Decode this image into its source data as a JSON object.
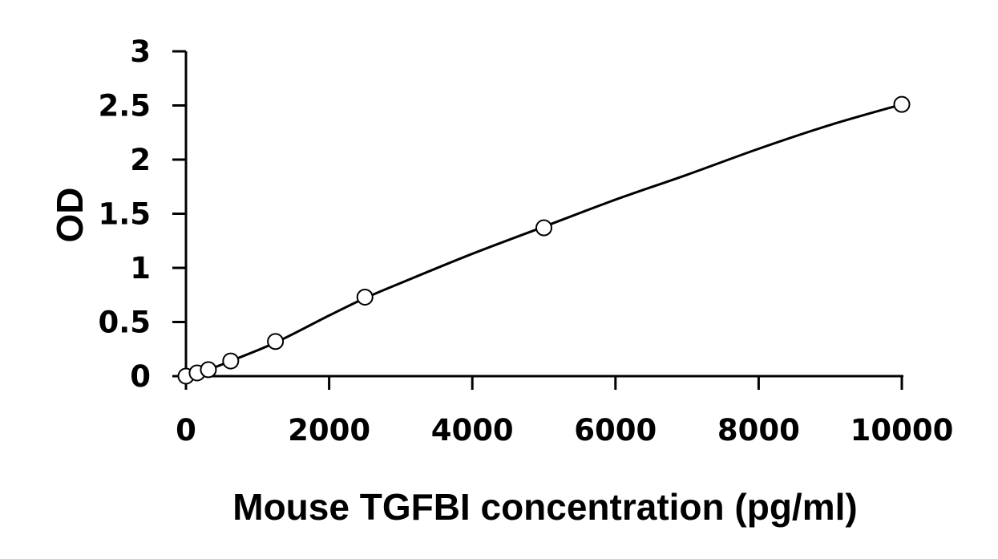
{
  "chart_data": {
    "type": "scatter",
    "title": "",
    "xlabel": "Mouse TGFBI concentration (pg/ml)",
    "ylabel": "OD",
    "xlim": [
      0,
      10000
    ],
    "ylim": [
      0,
      3
    ],
    "x_ticks": [
      0,
      2000,
      4000,
      6000,
      8000,
      10000
    ],
    "x_tick_labels": [
      "0",
      "2000",
      "4000",
      "6000",
      "8000",
      "10000"
    ],
    "y_ticks": [
      0,
      0.5,
      1,
      1.5,
      2,
      2.5,
      3
    ],
    "y_tick_labels": [
      "0",
      "0.5",
      "1",
      "1.5",
      "2",
      "2.5",
      "3"
    ],
    "grid": false,
    "legend": "none",
    "series": [
      {
        "marker": "open-circle",
        "color": "#000000",
        "points": [
          {
            "x": 0,
            "y": 0.0
          },
          {
            "x": 156,
            "y": 0.03
          },
          {
            "x": 313,
            "y": 0.06
          },
          {
            "x": 625,
            "y": 0.14
          },
          {
            "x": 1250,
            "y": 0.32
          },
          {
            "x": 2500,
            "y": 0.73
          },
          {
            "x": 5000,
            "y": 1.37
          },
          {
            "x": 10000,
            "y": 2.51
          }
        ]
      }
    ],
    "fit_curve": {
      "type": "line",
      "color": "#000000",
      "points": [
        {
          "x": 0,
          "y": 0.0
        },
        {
          "x": 156,
          "y": 0.03
        },
        {
          "x": 313,
          "y": 0.06
        },
        {
          "x": 625,
          "y": 0.14
        },
        {
          "x": 1250,
          "y": 0.31
        },
        {
          "x": 2000,
          "y": 0.56
        },
        {
          "x": 2500,
          "y": 0.72
        },
        {
          "x": 3000,
          "y": 0.86
        },
        {
          "x": 4000,
          "y": 1.13
        },
        {
          "x": 5000,
          "y": 1.38
        },
        {
          "x": 6000,
          "y": 1.63
        },
        {
          "x": 7000,
          "y": 1.86
        },
        {
          "x": 8000,
          "y": 2.1
        },
        {
          "x": 9000,
          "y": 2.32
        },
        {
          "x": 10000,
          "y": 2.51
        }
      ]
    }
  }
}
